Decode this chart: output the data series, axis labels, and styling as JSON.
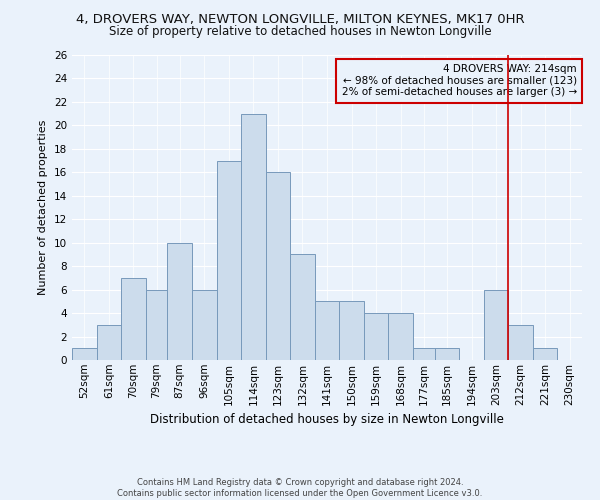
{
  "title": "4, DROVERS WAY, NEWTON LONGVILLE, MILTON KEYNES, MK17 0HR",
  "subtitle": "Size of property relative to detached houses in Newton Longville",
  "xlabel": "Distribution of detached houses by size in Newton Longville",
  "ylabel": "Number of detached properties",
  "footer1": "Contains HM Land Registry data © Crown copyright and database right 2024.",
  "footer2": "Contains public sector information licensed under the Open Government Licence v3.0.",
  "categories": [
    "52sqm",
    "61sqm",
    "70sqm",
    "79sqm",
    "87sqm",
    "96sqm",
    "105sqm",
    "114sqm",
    "123sqm",
    "132sqm",
    "141sqm",
    "150sqm",
    "159sqm",
    "168sqm",
    "177sqm",
    "185sqm",
    "194sqm",
    "203sqm",
    "212sqm",
    "221sqm",
    "230sqm"
  ],
  "values": [
    1,
    3,
    7,
    6,
    10,
    6,
    17,
    21,
    16,
    9,
    5,
    5,
    4,
    4,
    1,
    1,
    0,
    6,
    3,
    1,
    0
  ],
  "bar_color": "#ccdcec",
  "bar_edge_color": "#7799bb",
  "property_line_index": 18,
  "property_line_color": "#cc0000",
  "annotation_text": "4 DROVERS WAY: 214sqm\n← 98% of detached houses are smaller (123)\n2% of semi-detached houses are larger (3) →",
  "annotation_box_color": "#cc0000",
  "ylim": [
    0,
    26
  ],
  "yticks": [
    0,
    2,
    4,
    6,
    8,
    10,
    12,
    14,
    16,
    18,
    20,
    22,
    24,
    26
  ],
  "background_color": "#eaf2fb",
  "grid_color": "#ffffff",
  "title_fontsize": 9.5,
  "subtitle_fontsize": 8.5,
  "xlabel_fontsize": 8.5,
  "ylabel_fontsize": 8,
  "tick_fontsize": 7.5,
  "annotation_fontsize": 7.5,
  "footer_fontsize": 6,
  "bin_edges": [
    52,
    61,
    70,
    79,
    87,
    96,
    105,
    114,
    123,
    132,
    141,
    150,
    159,
    168,
    177,
    185,
    194,
    203,
    212,
    221,
    230,
    239
  ]
}
